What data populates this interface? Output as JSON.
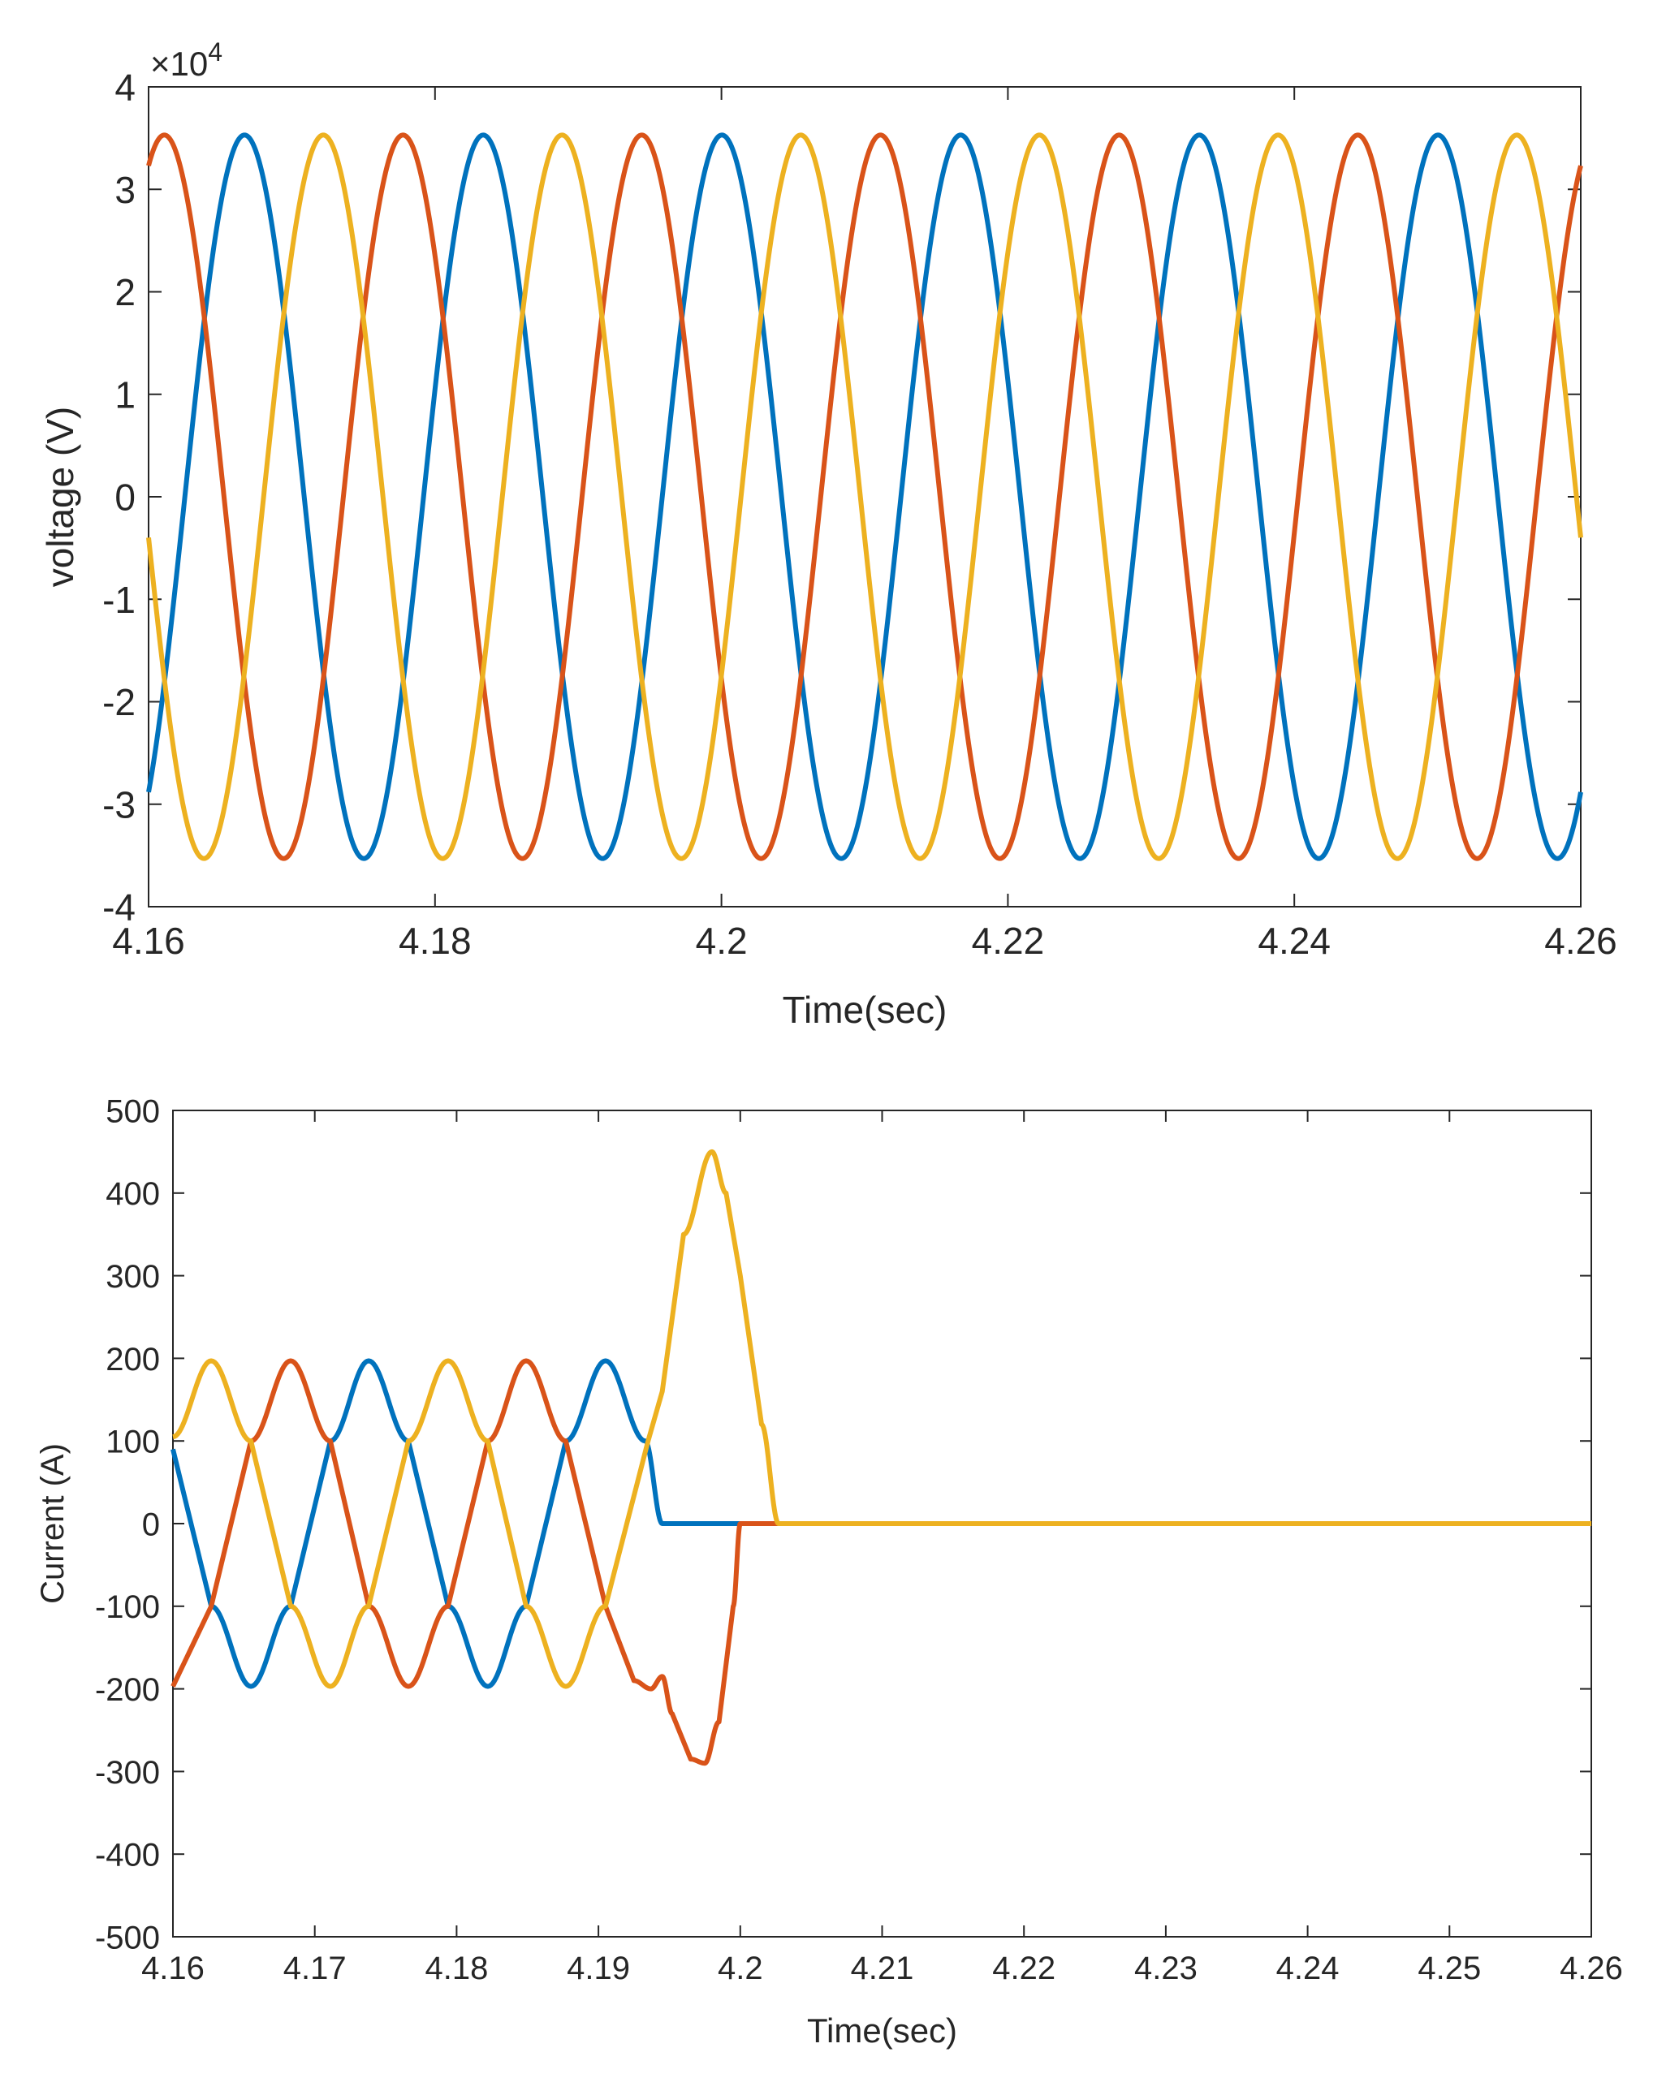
{
  "chart_data": [
    {
      "type": "line",
      "xlabel": "Time(sec)",
      "ylabel": "voltage (V)",
      "exponent_label": "×10",
      "exponent_power": "4",
      "xlim": [
        4.16,
        4.26
      ],
      "ylim": [
        -40000,
        40000
      ],
      "x_ticks": [
        4.16,
        4.18,
        4.2,
        4.22,
        4.24,
        4.26
      ],
      "x_tick_labels": [
        "4.16",
        "4.18",
        "4.2",
        "4.22",
        "4.24",
        "4.26"
      ],
      "y_ticks": [
        -40000,
        -30000,
        -20000,
        -10000,
        0,
        10000,
        20000,
        30000,
        40000
      ],
      "y_tick_labels": [
        "-4",
        "-3",
        "-2",
        "-1",
        "0",
        "1",
        "2",
        "3",
        "4"
      ],
      "grid": false,
      "series": [
        {
          "color": "#0072BD",
          "description": "sinusoid, amplitude 35300 V, frequency 60 Hz, peak at t=4.1667 s",
          "x": [
            4.16,
            4.1625,
            4.1667,
            4.1708,
            4.175,
            4.1792,
            4.1833,
            4.1875,
            4.1917,
            4.1958,
            4.2,
            4.2042,
            4.2083,
            4.2125,
            4.2167,
            4.2208,
            4.225,
            4.2292,
            4.2333,
            4.2375,
            4.2417,
            4.2458,
            4.25,
            4.2542,
            4.2583,
            4.26
          ],
          "y": [
            -28600,
            17650,
            35300,
            0,
            -35300,
            0,
            35300,
            0,
            -35300,
            0,
            35300,
            0,
            -35300,
            0,
            35300,
            0,
            -35300,
            0,
            35300,
            0,
            -35300,
            0,
            35300,
            0,
            -35300,
            -28600
          ]
        },
        {
          "color": "#D95319",
          "description": "sinusoid, amplitude 35300 V, frequency 60 Hz, peak at t=4.1611 s",
          "x": [
            4.16,
            4.1611,
            4.1653,
            4.1694,
            4.1736,
            4.1778,
            4.1819,
            4.1861,
            4.1903,
            4.1944,
            4.1986,
            4.2028,
            4.2069,
            4.2111,
            4.2153,
            4.2194,
            4.2236,
            4.2278,
            4.2319,
            4.2361,
            4.2403,
            4.2444,
            4.2486,
            4.2528,
            4.2569,
            4.26
          ],
          "y": [
            32500,
            35300,
            0,
            -35300,
            0,
            35300,
            0,
            -35300,
            0,
            35300,
            0,
            -35300,
            0,
            35300,
            0,
            -35300,
            0,
            35300,
            0,
            -35300,
            0,
            35300,
            0,
            -35300,
            0,
            32500
          ]
        },
        {
          "color": "#EDB120",
          "description": "sinusoid, amplitude 35300 V, frequency 60 Hz, peak at t=4.1722 s",
          "x": [
            4.16,
            4.1639,
            4.1681,
            4.1722,
            4.1764,
            4.1806,
            4.1847,
            4.1889,
            4.1931,
            4.1972,
            4.2014,
            4.2056,
            4.2097,
            4.2139,
            4.2181,
            4.2222,
            4.2264,
            4.2306,
            4.2347,
            4.2389,
            4.2431,
            4.2472,
            4.2514,
            4.2556,
            4.2597,
            4.26
          ],
          "y": [
            -3700,
            -35300,
            0,
            35300,
            0,
            -35300,
            0,
            35300,
            0,
            -35300,
            0,
            35300,
            0,
            -35300,
            0,
            35300,
            0,
            -35300,
            0,
            35300,
            0,
            -35300,
            0,
            35300,
            0,
            -3700
          ]
        }
      ]
    },
    {
      "type": "line",
      "xlabel": "Time(sec)",
      "ylabel": "Current (A)",
      "xlim": [
        4.16,
        4.26
      ],
      "ylim": [
        -500,
        500
      ],
      "x_ticks": [
        4.16,
        4.17,
        4.18,
        4.19,
        4.2,
        4.21,
        4.22,
        4.23,
        4.24,
        4.25,
        4.26
      ],
      "x_tick_labels": [
        "4.16",
        "4.17",
        "4.18",
        "4.19",
        "4.2",
        "4.21",
        "4.22",
        "4.23",
        "4.24",
        "4.25",
        "4.26"
      ],
      "y_ticks": [
        -500,
        -400,
        -300,
        -200,
        -100,
        0,
        100,
        200,
        300,
        400,
        500
      ],
      "y_tick_labels": [
        "-500",
        "-400",
        "-300",
        "-200",
        "-100",
        "0",
        "100",
        "200",
        "300",
        "400",
        "500"
      ],
      "grid": false,
      "series": [
        {
          "color": "#0072BD",
          "x": [
            4.16,
            4.1627,
            4.1655,
            4.1683,
            4.1711,
            4.1738,
            4.1766,
            4.1794,
            4.1822,
            4.1849,
            4.1877,
            4.1905,
            4.1933,
            4.1945,
            4.195,
            4.26
          ],
          "y": [
            90,
            -100,
            -197,
            -100,
            100,
            197,
            100,
            -100,
            -197,
            -100,
            100,
            197,
            100,
            0,
            0,
            0
          ]
        },
        {
          "color": "#D95319",
          "x": [
            4.16,
            4.1627,
            4.1655,
            4.1683,
            4.1711,
            4.1738,
            4.1766,
            4.1794,
            4.1822,
            4.1849,
            4.1877,
            4.1905,
            4.1925,
            4.1937,
            4.1945,
            4.1952,
            4.1965,
            4.1975,
            4.1985,
            4.1995,
            4.2,
            4.201,
            4.26
          ],
          "y": [
            -197,
            -100,
            100,
            197,
            100,
            -100,
            -197,
            -100,
            100,
            197,
            100,
            -100,
            -190,
            -200,
            -185,
            -230,
            -285,
            -290,
            -240,
            -100,
            0,
            0,
            0
          ]
        },
        {
          "color": "#EDB120",
          "x": [
            4.16,
            4.1627,
            4.1655,
            4.1683,
            4.1711,
            4.1738,
            4.1766,
            4.1794,
            4.1822,
            4.1849,
            4.1877,
            4.1905,
            4.1935,
            4.1945,
            4.196,
            4.198,
            4.199,
            4.2,
            4.2015,
            4.2027,
            4.2035,
            4.26
          ],
          "y": [
            105,
            197,
            100,
            -100,
            -197,
            -100,
            100,
            197,
            100,
            -100,
            -197,
            -100,
            100,
            160,
            350,
            450,
            400,
            300,
            120,
            0,
            0,
            0
          ]
        }
      ]
    }
  ]
}
